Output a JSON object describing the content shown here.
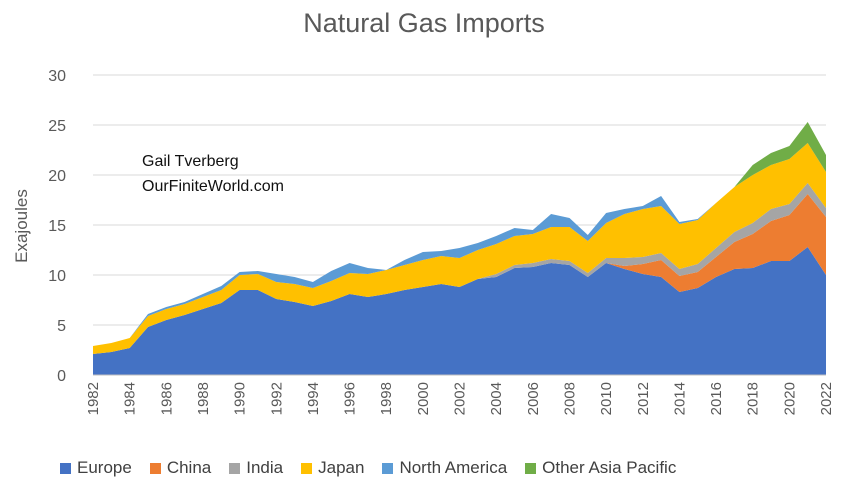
{
  "chart_data": {
    "type": "area",
    "title": "Natural Gas Imports",
    "ylabel": "Exajoules",
    "xlabel": "",
    "ylim": [
      0,
      30
    ],
    "yticks": [
      0,
      5,
      10,
      15,
      20,
      25,
      30
    ],
    "xlim": [
      1982,
      2022
    ],
    "xticks": [
      1982,
      1984,
      1986,
      1988,
      1990,
      1992,
      1994,
      1996,
      1998,
      2000,
      2002,
      2004,
      2006,
      2008,
      2010,
      2012,
      2014,
      2016,
      2018,
      2020,
      2022
    ],
    "grid": true,
    "stacked": true,
    "legend_position": "bottom",
    "annotations": [
      "Gail Tverberg",
      "OurFiniteWorld.com"
    ],
    "x": [
      1982,
      1983,
      1984,
      1985,
      1986,
      1987,
      1988,
      1989,
      1990,
      1991,
      1992,
      1993,
      1994,
      1995,
      1996,
      1997,
      1998,
      1999,
      2000,
      2001,
      2002,
      2003,
      2004,
      2005,
      2006,
      2007,
      2008,
      2009,
      2010,
      2011,
      2012,
      2013,
      2014,
      2015,
      2016,
      2017,
      2018,
      2019,
      2020,
      2021,
      2022
    ],
    "series": [
      {
        "name": "Europe",
        "color": "#4472C4",
        "values": [
          2.1,
          2.3,
          2.7,
          4.8,
          5.5,
          6.0,
          6.6,
          7.2,
          8.5,
          8.5,
          7.6,
          7.3,
          6.9,
          7.4,
          8.1,
          7.8,
          8.1,
          8.5,
          8.8,
          9.1,
          8.8,
          9.6,
          9.8,
          10.7,
          10.8,
          11.2,
          11.0,
          9.8,
          11.2,
          10.6,
          10.1,
          9.8,
          8.3,
          8.7,
          9.8,
          10.6,
          10.7,
          11.4,
          11.4,
          12.8,
          10.0
        ]
      },
      {
        "name": "China",
        "color": "#ED7D31",
        "values": [
          0,
          0,
          0,
          0,
          0,
          0,
          0,
          0,
          0,
          0,
          0,
          0,
          0,
          0,
          0,
          0,
          0,
          0,
          0,
          0,
          0,
          0,
          0,
          0,
          0,
          0,
          0,
          0,
          0,
          0.3,
          1.0,
          1.7,
          1.6,
          1.6,
          2.0,
          2.7,
          3.4,
          4.0,
          4.6,
          5.3,
          5.8
        ]
      },
      {
        "name": "India",
        "color": "#A5A5A5",
        "values": [
          0,
          0,
          0,
          0,
          0,
          0,
          0,
          0,
          0,
          0,
          0,
          0,
          0,
          0,
          0,
          0,
          0,
          0,
          0,
          0,
          0,
          0,
          0.3,
          0.3,
          0.4,
          0.4,
          0.4,
          0.4,
          0.5,
          0.8,
          0.7,
          0.7,
          0.7,
          0.8,
          0.9,
          1.0,
          1.1,
          1.2,
          1.1,
          1.1,
          0.9
        ]
      },
      {
        "name": "Japan",
        "color": "#FFC000",
        "values": [
          0.8,
          0.9,
          1.0,
          1.1,
          1.1,
          1.1,
          1.2,
          1.3,
          1.5,
          1.6,
          1.7,
          1.8,
          1.8,
          2.0,
          2.1,
          2.3,
          2.4,
          2.5,
          2.7,
          2.8,
          2.9,
          2.9,
          3.0,
          2.9,
          2.9,
          3.2,
          3.4,
          3.2,
          3.5,
          4.4,
          4.8,
          4.7,
          4.5,
          4.4,
          4.5,
          4.5,
          4.8,
          4.4,
          4.5,
          4.0,
          3.6
        ]
      },
      {
        "name": "North America",
        "color": "#5B9BD5",
        "values": [
          0,
          0,
          0,
          0.2,
          0.2,
          0.2,
          0.3,
          0.4,
          0.3,
          0.3,
          0.8,
          0.7,
          0.6,
          1.0,
          1.0,
          0.6,
          0,
          0.5,
          0.8,
          0.5,
          1.0,
          0.7,
          0.8,
          0.8,
          0.4,
          1.3,
          0.9,
          0.6,
          1.0,
          0.5,
          0.3,
          1.0,
          0.2,
          0.1,
          0,
          0,
          0,
          0,
          0,
          0,
          0
        ]
      },
      {
        "name": "Other Asia Pacific",
        "color": "#70AD47",
        "values": [
          0,
          0,
          0,
          0,
          0,
          0,
          0,
          0,
          0,
          0,
          0,
          0,
          0,
          0,
          0,
          0,
          0,
          0,
          0,
          0,
          0,
          0,
          0,
          0,
          0,
          0,
          0,
          0,
          0,
          0,
          0,
          0,
          0,
          0,
          0,
          0,
          1.0,
          1.2,
          1.3,
          2.1,
          1.7
        ]
      }
    ]
  }
}
